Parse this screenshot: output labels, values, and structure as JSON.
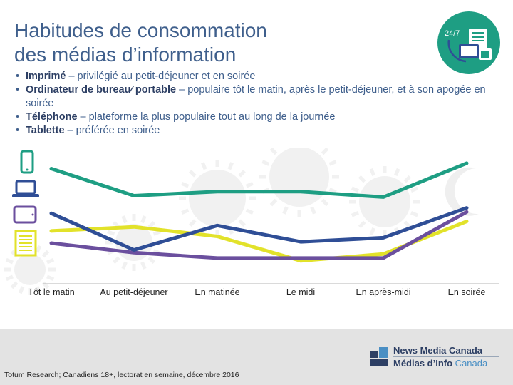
{
  "title_lines": [
    "Habitudes de consommation",
    "des médias d’information"
  ],
  "badge": {
    "text": "24/7",
    "color": "#1e9e83",
    "icon": "devices-icon"
  },
  "bullets": [
    {
      "bold": "Imprimé",
      "rest": " – privilégié au petit-déjeuner et en soirée"
    },
    {
      "bold": "Ordinateur de bureau⁄ portable",
      "rest": " – populaire tôt le matin, après le petit-déjeuner, et à son apogée en soirée"
    },
    {
      "bold": "Téléphone",
      "rest": " – plateforme la plus populaire tout au long de la journée"
    },
    {
      "bold": "Tablette",
      "rest": " – préférée en soirée"
    }
  ],
  "chart_data": {
    "type": "line",
    "categories": [
      "Tôt le matin",
      "Au petit-déjeuner",
      "En matinée",
      "Le midi",
      "En après-midi",
      "En soirée"
    ],
    "ylim": [
      0,
      100
    ],
    "grid": false,
    "legend": "icons-left",
    "series": [
      {
        "device": "phone",
        "icon": "smartphone-icon",
        "color": "#1e9e83",
        "values": [
          85,
          65,
          68,
          68,
          64,
          89
        ]
      },
      {
        "device": "computer",
        "icon": "laptop-icon",
        "color": "#2f4e96",
        "values": [
          52,
          25,
          43,
          31,
          34,
          56
        ]
      },
      {
        "device": "tablet",
        "icon": "tablet-icon",
        "color": "#e2e22a",
        "values": [
          39,
          42,
          35,
          17,
          22,
          46
        ]
      },
      {
        "device": "print",
        "icon": "newspaper-icon",
        "color": "#6b4f9e",
        "values": [
          30,
          23,
          19,
          19,
          19,
          53
        ]
      }
    ]
  },
  "footer": {
    "source": "Totum Research; Canadiens 18+, lectorat en semaine, décembre 2016",
    "logo_line1": "News Media Canada",
    "logo_line2a": "Médias d’Info",
    "logo_line2b": " Canada"
  }
}
